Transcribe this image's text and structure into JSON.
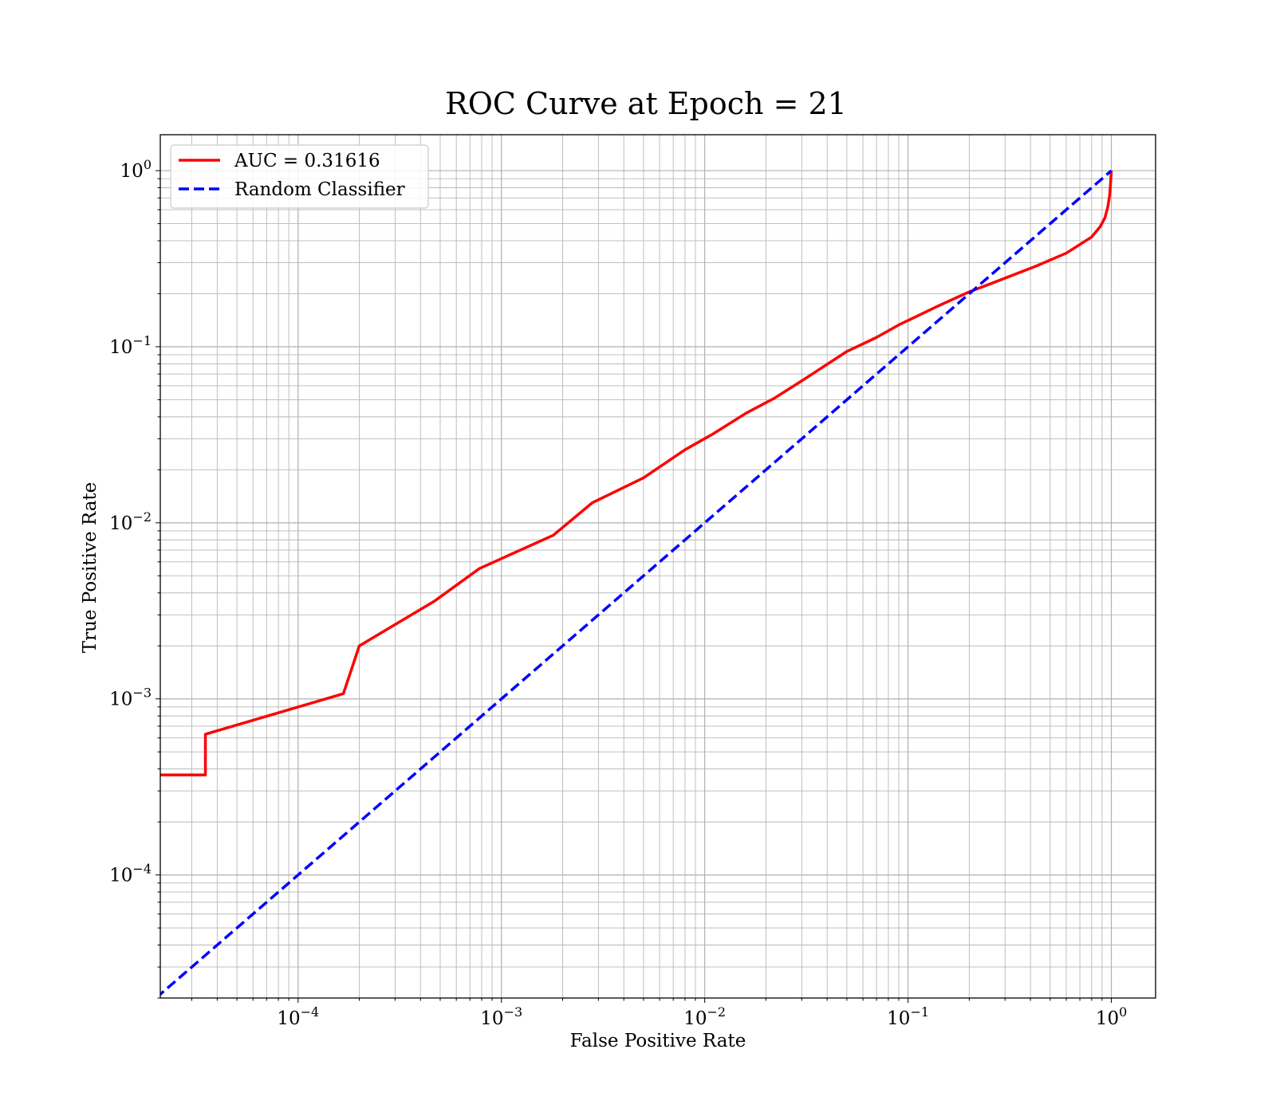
{
  "chart_data": {
    "type": "line",
    "title": "ROC Curve at Epoch = 21",
    "xlabel": "False Positive Rate",
    "ylabel": "True Positive Rate",
    "xscale": "log",
    "yscale": "log",
    "xlim": [
      2.1e-05,
      1.65
    ],
    "ylim": [
      2e-05,
      1.6
    ],
    "grid": true,
    "grid_minor": true,
    "legend_placement": "top-left",
    "x_ticks": [
      {
        "value": 0.0001,
        "base": "10",
        "exp": "−4"
      },
      {
        "value": 0.001,
        "base": "10",
        "exp": "−3"
      },
      {
        "value": 0.01,
        "base": "10",
        "exp": "−2"
      },
      {
        "value": 0.1,
        "base": "10",
        "exp": "−1"
      },
      {
        "value": 1,
        "base": "10",
        "exp": "0"
      }
    ],
    "y_ticks": [
      {
        "value": 0.0001,
        "base": "10",
        "exp": "−4"
      },
      {
        "value": 0.001,
        "base": "10",
        "exp": "−3"
      },
      {
        "value": 0.01,
        "base": "10",
        "exp": "−2"
      },
      {
        "value": 0.1,
        "base": "10",
        "exp": "−1"
      },
      {
        "value": 1,
        "base": "10",
        "exp": "0"
      }
    ],
    "series": [
      {
        "name": "AUC = 0.31616",
        "color": "#ff0000",
        "style": "solid",
        "x": [
          2.1e-05,
          3.5e-05,
          3.5e-05,
          0.000167,
          0.0002,
          0.00047,
          0.00078,
          0.0018,
          0.0028,
          0.005,
          0.008,
          0.011,
          0.016,
          0.022,
          0.03,
          0.05,
          0.07,
          0.09,
          0.14,
          0.2,
          0.26,
          0.42,
          0.6,
          0.8,
          0.88,
          0.93,
          0.96,
          0.98,
          0.99,
          1.0
        ],
        "y": [
          0.00037,
          0.00037,
          0.00063,
          0.00107,
          0.002,
          0.0036,
          0.0055,
          0.0085,
          0.013,
          0.018,
          0.026,
          0.032,
          0.042,
          0.051,
          0.064,
          0.094,
          0.113,
          0.133,
          0.17,
          0.205,
          0.23,
          0.285,
          0.34,
          0.42,
          0.48,
          0.54,
          0.62,
          0.72,
          0.83,
          1.0
        ]
      },
      {
        "name": "Random Classifier",
        "color": "#0000ff",
        "style": "dashed",
        "x": [
          2e-05,
          1.0
        ],
        "y": [
          2e-05,
          1.0
        ]
      }
    ]
  }
}
